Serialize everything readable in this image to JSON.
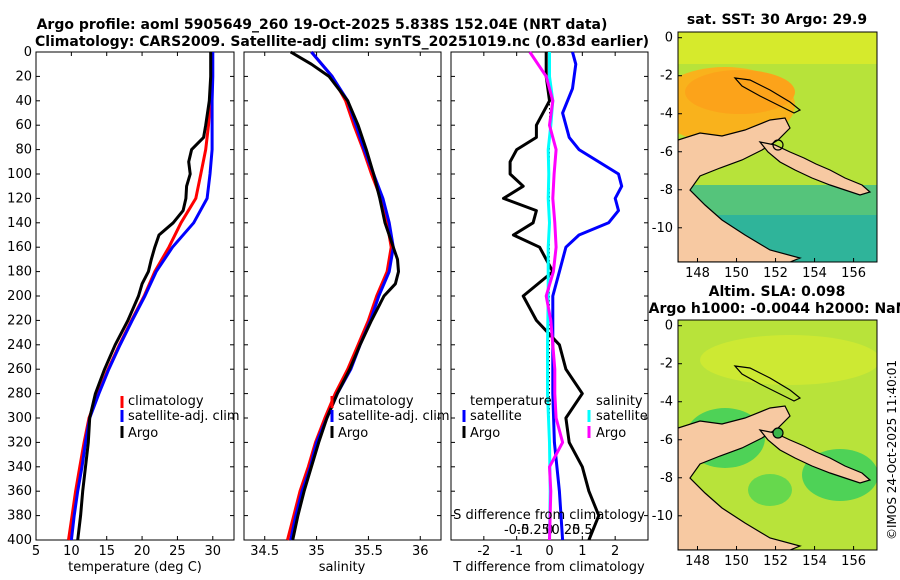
{
  "header": {
    "line1": "Argo profile: aoml 5905649_260 19-Oct-2025 5.838S 152.04E (NRT data)",
    "line2": "Climatology: CARS2009. Satellite-adj clim: synTS_20251019.nc (0.83d earlier)"
  },
  "colors": {
    "climatology": "#ff0000",
    "satellite": "#0000ff",
    "argo": "#000000",
    "salinity_diff": "#ff00ff",
    "salinity_sat": "#00ffff"
  },
  "watermark": "©IMOS 24-Oct-2025 11:40:01",
  "chart_data": [
    {
      "id": "temperature",
      "type": "line",
      "xlabel": "temperature (deg C)",
      "ylabel": "",
      "xlim": [
        5,
        33
      ],
      "ylim": [
        0,
        400
      ],
      "y_reversed": true,
      "xticks": [
        5,
        10,
        15,
        20,
        25,
        30
      ],
      "yticks": [
        0,
        20,
        40,
        60,
        80,
        100,
        120,
        140,
        160,
        180,
        200,
        220,
        240,
        260,
        280,
        300,
        320,
        340,
        360,
        380,
        400
      ],
      "legend": [
        "climatology",
        "satellite-adj. clim",
        "Argo"
      ],
      "series": [
        {
          "name": "climatology",
          "color": "#ff0000",
          "depth": [
            0,
            20,
            40,
            60,
            80,
            100,
            120,
            140,
            160,
            180,
            200,
            220,
            240,
            260,
            280,
            300,
            320,
            340,
            360,
            380,
            400
          ],
          "values": [
            29.9,
            29.8,
            29.6,
            29.4,
            29.0,
            28.3,
            27.6,
            25.5,
            23.8,
            21.8,
            20.3,
            18.5,
            16.8,
            15.2,
            13.8,
            12.5,
            11.8,
            11.2,
            10.6,
            10.1,
            9.6
          ]
        },
        {
          "name": "satellite-adj. clim",
          "color": "#0000ff",
          "depth": [
            0,
            20,
            40,
            60,
            80,
            100,
            120,
            140,
            160,
            180,
            200,
            220,
            240,
            260,
            280,
            300,
            320,
            340,
            360,
            380,
            400
          ],
          "values": [
            30.0,
            30.0,
            29.9,
            29.9,
            29.9,
            29.6,
            29.2,
            27.3,
            24.3,
            22.0,
            20.4,
            18.6,
            16.9,
            15.3,
            13.9,
            12.6,
            12.0,
            11.5,
            10.9,
            10.4,
            10.0
          ]
        },
        {
          "name": "Argo",
          "color": "#000000",
          "depth": [
            0,
            20,
            40,
            60,
            70,
            80,
            90,
            100,
            110,
            120,
            130,
            140,
            150,
            160,
            170,
            180,
            190,
            200,
            220,
            240,
            260,
            280,
            300,
            320,
            340,
            360,
            380,
            400
          ],
          "values": [
            29.7,
            29.7,
            29.5,
            29.0,
            28.7,
            27.0,
            26.6,
            26.8,
            26.3,
            26.2,
            25.8,
            24.4,
            22.4,
            21.8,
            21.3,
            20.9,
            20.0,
            19.5,
            18.0,
            16.2,
            14.7,
            13.4,
            12.6,
            12.4,
            12.0,
            11.6,
            11.3,
            10.9
          ]
        }
      ]
    },
    {
      "id": "salinity",
      "type": "line",
      "xlabel": "salinity",
      "ylabel": "",
      "xlim": [
        34.3,
        36.2
      ],
      "ylim": [
        0,
        400
      ],
      "y_reversed": true,
      "xticks": [
        34.5,
        35,
        35.5,
        36
      ],
      "xticklabels": [
        "34.5",
        "35",
        "35.5",
        "36"
      ],
      "legend": [
        "climatology",
        "satellite-adj. clim",
        "Argo"
      ],
      "series": [
        {
          "name": "climatology",
          "color": "#ff0000",
          "depth": [
            0,
            20,
            40,
            60,
            80,
            100,
            120,
            140,
            160,
            180,
            200,
            220,
            240,
            260,
            280,
            300,
            320,
            340,
            360,
            380,
            400
          ],
          "values": [
            34.95,
            35.15,
            35.28,
            35.36,
            35.45,
            35.53,
            35.62,
            35.68,
            35.72,
            35.68,
            35.58,
            35.5,
            35.4,
            35.3,
            35.18,
            35.08,
            34.99,
            34.92,
            34.84,
            34.78,
            34.72
          ]
        },
        {
          "name": "satellite-adj. clim",
          "color": "#0000ff",
          "depth": [
            0,
            20,
            40,
            60,
            80,
            100,
            120,
            140,
            160,
            180,
            200,
            220,
            240,
            260,
            280,
            300,
            320,
            340,
            360,
            380,
            400
          ],
          "values": [
            34.95,
            35.15,
            35.3,
            35.38,
            35.46,
            35.55,
            35.64,
            35.7,
            35.74,
            35.7,
            35.6,
            35.52,
            35.42,
            35.33,
            35.2,
            35.1,
            35.0,
            34.94,
            34.86,
            34.8,
            34.75
          ]
        },
        {
          "name": "Argo",
          "color": "#000000",
          "depth": [
            0,
            10,
            20,
            40,
            60,
            80,
            100,
            120,
            140,
            160,
            170,
            180,
            190,
            200,
            220,
            240,
            260,
            280,
            300,
            320,
            340,
            360,
            380,
            400
          ],
          "values": [
            34.75,
            34.95,
            35.12,
            35.3,
            35.4,
            35.48,
            35.55,
            35.61,
            35.66,
            35.74,
            35.78,
            35.79,
            35.76,
            35.65,
            35.53,
            35.42,
            35.32,
            35.2,
            35.1,
            35.02,
            34.95,
            34.88,
            34.82,
            34.77
          ]
        }
      ]
    },
    {
      "id": "differences",
      "type": "line",
      "xlabel": "T difference from climatology",
      "top_axis_label": "S difference from climatology",
      "xlim": [
        -3,
        3
      ],
      "ylim": [
        0,
        400
      ],
      "y_reversed": true,
      "xticks": [
        -2,
        -1,
        0,
        1,
        2
      ],
      "top_xlim": [
        -1.5,
        1.5
      ],
      "top_xticks": [
        -0.5,
        -0.25,
        0,
        0.25,
        0.5
      ],
      "top_xticklabels": [
        "-0.5",
        "-0.25",
        "0",
        "0.25",
        "0.5"
      ],
      "legend_temperature": {
        "title": "temperature",
        "entries": [
          "satellite",
          "Argo"
        ]
      },
      "legend_salinity": {
        "title": "salinity",
        "entries": [
          "satellite",
          "Argo"
        ]
      },
      "series": [
        {
          "name": "T satellite",
          "color": "#0000ff",
          "axis": "bottom",
          "depth": [
            0,
            10,
            30,
            50,
            70,
            80,
            100,
            110,
            120,
            130,
            140,
            150,
            160,
            180,
            200,
            240,
            280,
            320,
            360,
            400
          ],
          "values": [
            0.7,
            0.8,
            0.7,
            0.4,
            0.6,
            0.9,
            2.1,
            2.2,
            2.0,
            2.1,
            1.8,
            0.9,
            0.5,
            0.3,
            0.1,
            0.1,
            0.1,
            0.15,
            0.3,
            0.4
          ]
        },
        {
          "name": "T Argo",
          "color": "#000000",
          "axis": "bottom",
          "depth": [
            0,
            20,
            40,
            60,
            70,
            80,
            90,
            100,
            110,
            120,
            130,
            140,
            150,
            160,
            180,
            200,
            210,
            220,
            240,
            260,
            280,
            300,
            320,
            340,
            360,
            380,
            400
          ],
          "values": [
            -0.1,
            -0.1,
            0.0,
            -0.4,
            -0.4,
            -1.0,
            -1.2,
            -1.2,
            -0.8,
            -1.4,
            -0.4,
            -0.5,
            -1.1,
            -0.3,
            0.1,
            -0.8,
            -0.6,
            -0.4,
            0.3,
            0.5,
            1.0,
            0.5,
            0.6,
            1.0,
            1.2,
            1.5,
            1.2
          ]
        },
        {
          "name": "S satellite",
          "color": "#00ffff",
          "axis": "top",
          "depth": [
            0,
            20,
            40,
            60,
            80,
            100,
            120,
            140,
            160,
            200,
            240,
            280,
            320,
            360,
            400
          ],
          "values": [
            0.0,
            0.0,
            0.05,
            0.02,
            -0.02,
            -0.01,
            -0.02,
            0.0,
            -0.02,
            -0.02,
            -0.03,
            -0.03,
            0.0,
            0.01,
            0.0
          ]
        },
        {
          "name": "S Argo",
          "color": "#ff00ff",
          "axis": "top",
          "depth": [
            0,
            20,
            40,
            60,
            80,
            100,
            120,
            140,
            160,
            180,
            200,
            220,
            240,
            260,
            280,
            300,
            320,
            340,
            360,
            400
          ],
          "values": [
            -0.3,
            -0.05,
            0.05,
            0.0,
            0.1,
            0.07,
            0.05,
            0.08,
            0.1,
            0.06,
            -0.05,
            0.02,
            0.05,
            0.08,
            0.08,
            0.1,
            0.2,
            0.0,
            0.02,
            0.0
          ]
        }
      ]
    },
    {
      "id": "sst_map",
      "type": "heatmap",
      "title": "sat. SST: 30 Argo: 29.9",
      "xlim": [
        147,
        157.2
      ],
      "ylim": [
        -11.8,
        0.3
      ],
      "xticks": [
        148,
        150,
        152,
        154,
        156
      ],
      "yticks": [
        0,
        -2,
        -4,
        -6,
        -8,
        -10
      ],
      "marker": {
        "lon": 152.04,
        "lat": -5.838
      }
    },
    {
      "id": "sla_map",
      "type": "heatmap",
      "title": "Altim. SLA: 0.098",
      "subtitle": "Argo h1000: -0.0044 h2000: NaN",
      "xlim": [
        147,
        157.2
      ],
      "ylim": [
        -11.8,
        0.3
      ],
      "xticks": [
        148,
        150,
        152,
        154,
        156
      ],
      "yticks": [
        0,
        -2,
        -4,
        -6,
        -8,
        -10
      ],
      "marker": {
        "lon": 152.04,
        "lat": -5.838
      }
    }
  ]
}
